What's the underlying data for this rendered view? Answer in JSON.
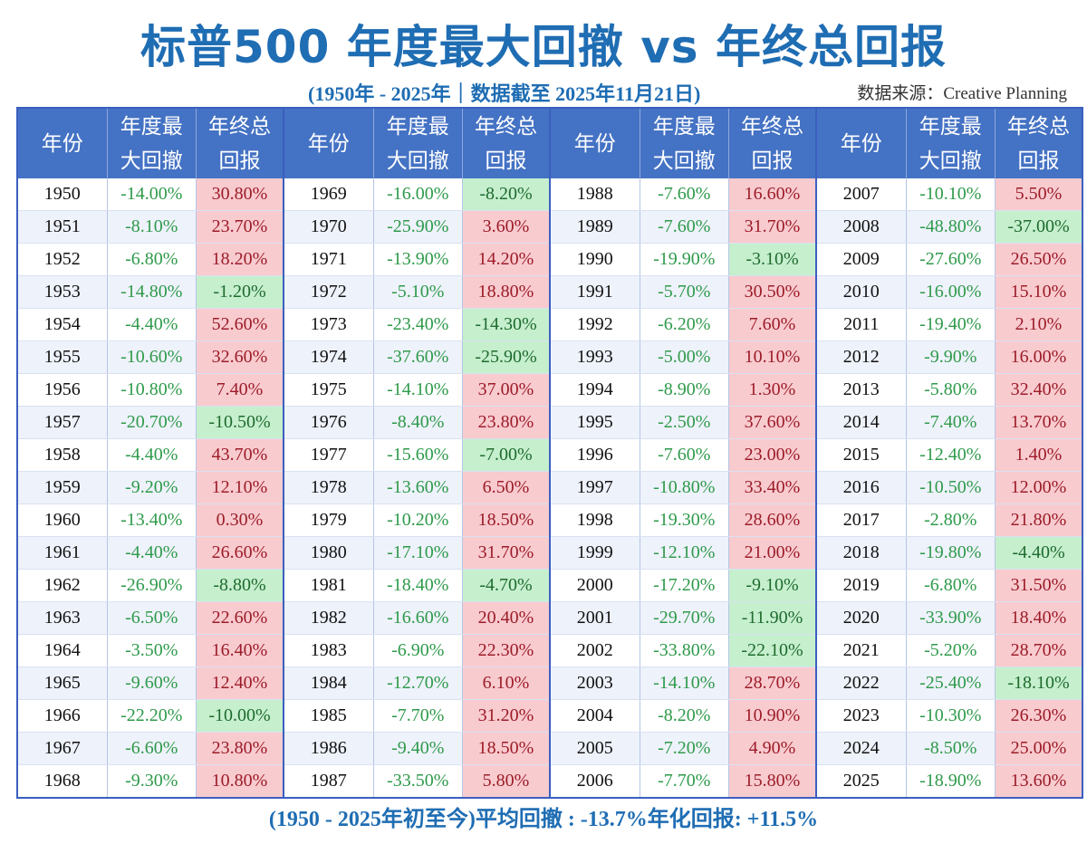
{
  "header": {
    "title": "标普500 年度最大回撤 vs 年终总回报",
    "subtitle": "(1950年 - 2025年｜数据截至 2025年11月21日)",
    "source": "数据来源：Creative Planning"
  },
  "footer": "(1950 - 2025年初至今)平均回撤 : -13.7%年化回报: +11.5%",
  "colors": {
    "header_bg": "#4472c4",
    "positive_bg": "#f8cbcf",
    "negative_bg": "#c6efce",
    "drawdown_text": "#2e9a4a",
    "title": "#1f6db3"
  },
  "chart_data": {
    "type": "table",
    "columns": [
      "年份",
      "年度最大回撤",
      "年终总回报"
    ],
    "column_labels": [
      [
        "年份"
      ],
      [
        "年度最",
        "大回撤"
      ],
      [
        "年终总",
        "回报"
      ]
    ],
    "rows": [
      [
        "1950",
        "-14.00%",
        "30.80%"
      ],
      [
        "1951",
        "-8.10%",
        "23.70%"
      ],
      [
        "1952",
        "-6.80%",
        "18.20%"
      ],
      [
        "1953",
        "-14.80%",
        "-1.20%"
      ],
      [
        "1954",
        "-4.40%",
        "52.60%"
      ],
      [
        "1955",
        "-10.60%",
        "32.60%"
      ],
      [
        "1956",
        "-10.80%",
        "7.40%"
      ],
      [
        "1957",
        "-20.70%",
        "-10.50%"
      ],
      [
        "1958",
        "-4.40%",
        "43.70%"
      ],
      [
        "1959",
        "-9.20%",
        "12.10%"
      ],
      [
        "1960",
        "-13.40%",
        "0.30%"
      ],
      [
        "1961",
        "-4.40%",
        "26.60%"
      ],
      [
        "1962",
        "-26.90%",
        "-8.80%"
      ],
      [
        "1963",
        "-6.50%",
        "22.60%"
      ],
      [
        "1964",
        "-3.50%",
        "16.40%"
      ],
      [
        "1965",
        "-9.60%",
        "12.40%"
      ],
      [
        "1966",
        "-22.20%",
        "-10.00%"
      ],
      [
        "1967",
        "-6.60%",
        "23.80%"
      ],
      [
        "1968",
        "-9.30%",
        "10.80%"
      ],
      [
        "1969",
        "-16.00%",
        "-8.20%"
      ],
      [
        "1970",
        "-25.90%",
        "3.60%"
      ],
      [
        "1971",
        "-13.90%",
        "14.20%"
      ],
      [
        "1972",
        "-5.10%",
        "18.80%"
      ],
      [
        "1973",
        "-23.40%",
        "-14.30%"
      ],
      [
        "1974",
        "-37.60%",
        "-25.90%"
      ],
      [
        "1975",
        "-14.10%",
        "37.00%"
      ],
      [
        "1976",
        "-8.40%",
        "23.80%"
      ],
      [
        "1977",
        "-15.60%",
        "-7.00%"
      ],
      [
        "1978",
        "-13.60%",
        "6.50%"
      ],
      [
        "1979",
        "-10.20%",
        "18.50%"
      ],
      [
        "1980",
        "-17.10%",
        "31.70%"
      ],
      [
        "1981",
        "-18.40%",
        "-4.70%"
      ],
      [
        "1982",
        "-16.60%",
        "20.40%"
      ],
      [
        "1983",
        "-6.90%",
        "22.30%"
      ],
      [
        "1984",
        "-12.70%",
        "6.10%"
      ],
      [
        "1985",
        "-7.70%",
        "31.20%"
      ],
      [
        "1986",
        "-9.40%",
        "18.50%"
      ],
      [
        "1987",
        "-33.50%",
        "5.80%"
      ],
      [
        "1988",
        "-7.60%",
        "16.60%"
      ],
      [
        "1989",
        "-7.60%",
        "31.70%"
      ],
      [
        "1990",
        "-19.90%",
        "-3.10%"
      ],
      [
        "1991",
        "-5.70%",
        "30.50%"
      ],
      [
        "1992",
        "-6.20%",
        "7.60%"
      ],
      [
        "1993",
        "-5.00%",
        "10.10%"
      ],
      [
        "1994",
        "-8.90%",
        "1.30%"
      ],
      [
        "1995",
        "-2.50%",
        "37.60%"
      ],
      [
        "1996",
        "-7.60%",
        "23.00%"
      ],
      [
        "1997",
        "-10.80%",
        "33.40%"
      ],
      [
        "1998",
        "-19.30%",
        "28.60%"
      ],
      [
        "1999",
        "-12.10%",
        "21.00%"
      ],
      [
        "2000",
        "-17.20%",
        "-9.10%"
      ],
      [
        "2001",
        "-29.70%",
        "-11.90%"
      ],
      [
        "2002",
        "-33.80%",
        "-22.10%"
      ],
      [
        "2003",
        "-14.10%",
        "28.70%"
      ],
      [
        "2004",
        "-8.20%",
        "10.90%"
      ],
      [
        "2005",
        "-7.20%",
        "4.90%"
      ],
      [
        "2006",
        "-7.70%",
        "15.80%"
      ],
      [
        "2007",
        "-10.10%",
        "5.50%"
      ],
      [
        "2008",
        "-48.80%",
        "-37.00%"
      ],
      [
        "2009",
        "-27.60%",
        "26.50%"
      ],
      [
        "2010",
        "-16.00%",
        "15.10%"
      ],
      [
        "2011",
        "-19.40%",
        "2.10%"
      ],
      [
        "2012",
        "-9.90%",
        "16.00%"
      ],
      [
        "2013",
        "-5.80%",
        "32.40%"
      ],
      [
        "2014",
        "-7.40%",
        "13.70%"
      ],
      [
        "2015",
        "-12.40%",
        "1.40%"
      ],
      [
        "2016",
        "-10.50%",
        "12.00%"
      ],
      [
        "2017",
        "-2.80%",
        "21.80%"
      ],
      [
        "2018",
        "-19.80%",
        "-4.40%"
      ],
      [
        "2019",
        "-6.80%",
        "31.50%"
      ],
      [
        "2020",
        "-33.90%",
        "18.40%"
      ],
      [
        "2021",
        "-5.20%",
        "28.70%"
      ],
      [
        "2022",
        "-25.40%",
        "-18.10%"
      ],
      [
        "2023",
        "-10.30%",
        "26.30%"
      ],
      [
        "2024",
        "-8.50%",
        "25.00%"
      ],
      [
        "2025",
        "-18.90%",
        "13.60%"
      ]
    ]
  }
}
